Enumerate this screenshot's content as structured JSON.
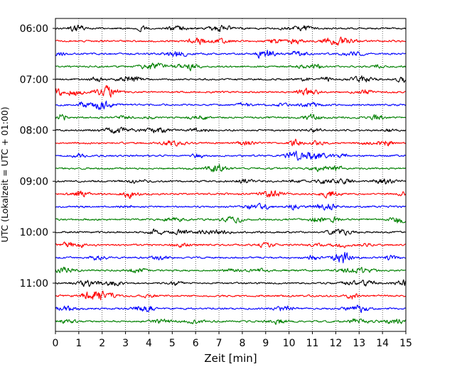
{
  "chart_data": {
    "type": "line",
    "title": "",
    "xlabel": "Zeit  [min]",
    "ylabel": "UTC (Lokalzeit = UTC + 01:00)",
    "xlim": [
      0,
      15
    ],
    "x_ticks": [
      "0",
      "1",
      "2",
      "3",
      "4",
      "5",
      "6",
      "7",
      "8",
      "9",
      "10",
      "11",
      "12",
      "13",
      "14",
      "15"
    ],
    "y_ticks": [
      "06:00",
      "07:00",
      "08:00",
      "09:00",
      "10:00",
      "11:00"
    ],
    "vertical_grid": true,
    "grid_style": "dotted",
    "trace_colors": [
      "#000000",
      "#ff0000",
      "#0000ff",
      "#008000"
    ],
    "trace_times": [
      "06:00",
      "06:15",
      "06:30",
      "06:45",
      "07:00",
      "07:15",
      "07:30",
      "07:45",
      "08:00",
      "08:15",
      "08:30",
      "08:45",
      "09:00",
      "09:15",
      "09:30",
      "09:45",
      "10:00",
      "10:15",
      "10:30",
      "10:45",
      "11:00",
      "11:15",
      "11:30",
      "11:45"
    ]
  }
}
